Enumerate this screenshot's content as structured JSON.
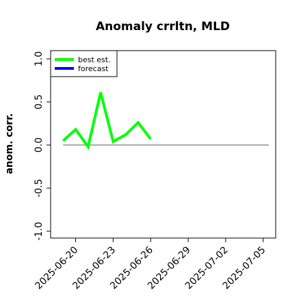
{
  "chart_data": {
    "type": "line",
    "title": "Anomaly crrltn, MLD",
    "xlabel": "",
    "ylabel": "anom. corr.",
    "ylim": [
      -1.0,
      1.0
    ],
    "yticks": [
      -1.0,
      -0.5,
      0.0,
      0.5,
      1.0
    ],
    "ytick_labels": [
      "-1.0",
      "-0.5",
      "0.0",
      "0.5",
      "1.0"
    ],
    "xlim": [
      "2025-06-18",
      "2025-07-06"
    ],
    "xticks": [
      "2025-06-20",
      "2025-06-23",
      "2025-06-26",
      "2025-06-29",
      "2025-07-02",
      "2025-07-05"
    ],
    "xtick_labels": [
      "2025-06-20",
      "2025-06-23",
      "2025-06-26",
      "2025-06-29",
      "2025-07-02",
      "2025-07-05"
    ],
    "highlight_xtick": "2025-06-26",
    "highlight_color": "#228b22",
    "reference_line": {
      "y": 0.0,
      "from": "2025-06-19",
      "to": "2025-07-06",
      "color": "#555555"
    },
    "grid": false,
    "legend_position": "top-left",
    "series": [
      {
        "name": "best est.",
        "color": "#00ff00",
        "x": [
          "2025-06-19",
          "2025-06-20",
          "2025-06-21",
          "2025-06-22",
          "2025-06-23",
          "2025-06-24",
          "2025-06-25",
          "2025-06-26"
        ],
        "values": [
          0.05,
          0.18,
          -0.02,
          0.61,
          0.04,
          0.12,
          0.26,
          0.07
        ]
      },
      {
        "name": "forecast",
        "color": "#0000ff",
        "x": [],
        "values": []
      }
    ]
  }
}
